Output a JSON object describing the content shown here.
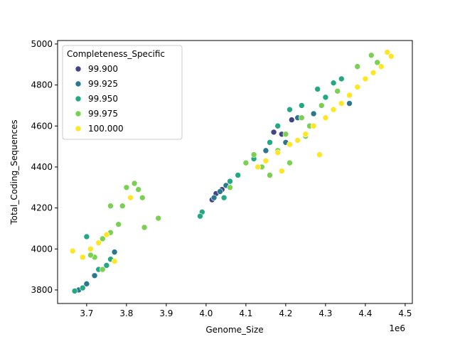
{
  "chart_data": {
    "type": "scatter",
    "x_label": "Genome_Size",
    "y_label": "Total_Coding_Sequences",
    "x_offset_label": "1e6",
    "legend_title": "Completeness_Specific",
    "legend_position": "upper left",
    "xlim": [
      3627000,
      4518000
    ],
    "ylim": [
      3734,
      5017
    ],
    "xticks": [
      {
        "value": 3700000,
        "label": "3.7"
      },
      {
        "value": 3800000,
        "label": "3.8"
      },
      {
        "value": 3900000,
        "label": "3.9"
      },
      {
        "value": 4000000,
        "label": "4.0"
      },
      {
        "value": 4100000,
        "label": "4.1"
      },
      {
        "value": 4200000,
        "label": "4.2"
      },
      {
        "value": 4300000,
        "label": "4.3"
      },
      {
        "value": 4400000,
        "label": "4.4"
      },
      {
        "value": 4500000,
        "label": "4.5"
      }
    ],
    "yticks": [
      3800,
      4000,
      4200,
      4400,
      4600,
      4800,
      5000
    ],
    "series": [
      {
        "name": "99.900",
        "color": "#414487",
        "x": [
          4015000,
          4025000,
          4040000,
          4190000,
          4215000,
          4170000
        ],
        "y": [
          4240,
          4270,
          4290,
          4560,
          4630,
          4570
        ]
      },
      {
        "name": "99.925",
        "color": "#2a788e",
        "x": [
          3770000,
          3720000,
          3700000,
          4020000,
          4035000,
          4050000,
          4150000,
          4200000,
          4230000,
          4360000,
          4270000,
          3680000
        ],
        "y": [
          3985,
          3870,
          3830,
          4250,
          4280,
          4310,
          4480,
          4520,
          4640,
          4710,
          4660,
          3800
        ]
      },
      {
        "name": "99.950",
        "color": "#22a884",
        "x": [
          3670000,
          3690000,
          3730000,
          3750000,
          3760000,
          3700000,
          3990000,
          3985000,
          4045000,
          4060000,
          4120000,
          4180000,
          4210000,
          4240000,
          4280000,
          4320000,
          4340000,
          4300000,
          4160000,
          4080000
        ],
        "y": [
          3795,
          3810,
          3900,
          3920,
          3950,
          4060,
          4180,
          4160,
          4250,
          4330,
          4440,
          4600,
          4680,
          4700,
          4780,
          4810,
          4830,
          4740,
          4520,
          4360
        ]
      },
      {
        "name": "99.975",
        "color": "#7ad151",
        "x": [
          3740000,
          3720000,
          3740000,
          3760000,
          3780000,
          3760000,
          3790000,
          3800000,
          3820000,
          3830000,
          3840000,
          3845000,
          3880000,
          3710000,
          4100000,
          4120000,
          4140000,
          4160000,
          4210000,
          4200000,
          4240000,
          4260000,
          4290000,
          4330000,
          4380000,
          4415000,
          4430000,
          4180000,
          4250000,
          4060000
        ],
        "y": [
          3900,
          3960,
          4050,
          4080,
          4120,
          4210,
          4210,
          4300,
          4320,
          4290,
          4250,
          4105,
          4150,
          3970,
          4420,
          4460,
          4400,
          4360,
          4420,
          4560,
          4640,
          4600,
          4700,
          4770,
          4890,
          4945,
          4910,
          4480,
          4550,
          4300
        ]
      },
      {
        "name": "100.000",
        "color": "#fde725",
        "x": [
          3665000,
          3690000,
          3710000,
          3730000,
          3750000,
          3770000,
          3810000,
          4130000,
          4150000,
          4180000,
          4210000,
          4230000,
          4250000,
          4270000,
          4285000,
          4300000,
          4320000,
          4340000,
          4360000,
          4380000,
          4400000,
          4420000,
          4440000,
          4455000,
          4465000,
          4190000
        ],
        "y": [
          3990,
          3960,
          4000,
          4030,
          4070,
          3940,
          4250,
          4400,
          4430,
          4470,
          4510,
          4530,
          4560,
          4600,
          4460,
          4640,
          4680,
          4710,
          4750,
          4790,
          4830,
          4860,
          4890,
          4960,
          4940,
          4380
        ]
      }
    ]
  }
}
